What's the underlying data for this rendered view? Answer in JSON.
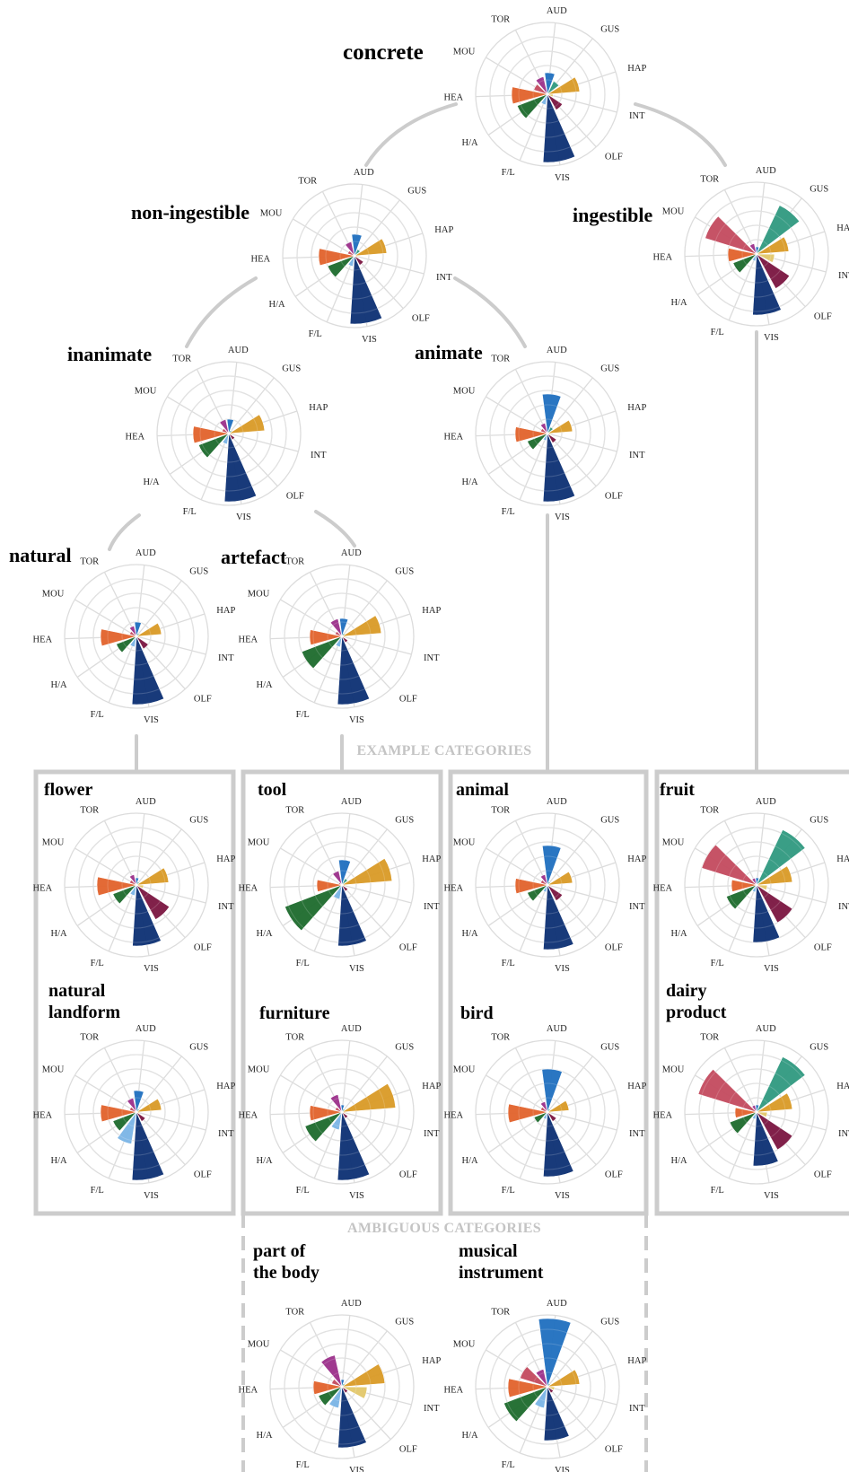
{
  "figure": {
    "example_heading": "EXAMPLE CATEGORIES",
    "ambiguous_heading": "AMBIGUOUS CATEGORIES"
  },
  "dimensions": [
    {
      "code": "AUD",
      "color": "#1f6fbf"
    },
    {
      "code": "GUS",
      "color": "#2f9980"
    },
    {
      "code": "HAP",
      "color": "#d99a26"
    },
    {
      "code": "INT",
      "color": "#e3c76a"
    },
    {
      "code": "OLF",
      "color": "#7a1540"
    },
    {
      "code": "VIS",
      "color": "#0c2f73"
    },
    {
      "code": "F/L",
      "color": "#7ab4e6"
    },
    {
      "code": "H/A",
      "color": "#1c6a2c"
    },
    {
      "code": "HEA",
      "color": "#e2622b"
    },
    {
      "code": "MOU",
      "color": "#c34a5e"
    },
    {
      "code": "TOR",
      "color": "#9b2f8a"
    }
  ],
  "chart_data": [
    {
      "type": "polar-bar",
      "title": [
        "concrete"
      ],
      "values": [
        0.3,
        0.2,
        0.45,
        0.08,
        0.25,
        0.95,
        0.15,
        0.45,
        0.5,
        0.2,
        0.25
      ]
    },
    {
      "type": "polar-bar",
      "title": [
        "non-ingestible"
      ],
      "values": [
        0.3,
        0.1,
        0.45,
        0.05,
        0.15,
        0.95,
        0.15,
        0.4,
        0.5,
        0.1,
        0.2
      ]
    },
    {
      "type": "polar-bar",
      "title": [
        "ingestible"
      ],
      "values": [
        0.1,
        0.75,
        0.45,
        0.25,
        0.55,
        0.85,
        0.1,
        0.35,
        0.4,
        0.75,
        0.15
      ]
    },
    {
      "type": "polar-bar",
      "title": [
        "inanimate"
      ],
      "values": [
        0.2,
        0.05,
        0.5,
        0.05,
        0.1,
        0.95,
        0.15,
        0.45,
        0.5,
        0.1,
        0.2
      ]
    },
    {
      "type": "polar-bar",
      "title": [
        "animate"
      ],
      "values": [
        0.55,
        0.1,
        0.35,
        0.05,
        0.15,
        0.95,
        0.1,
        0.3,
        0.45,
        0.1,
        0.15
      ]
    },
    {
      "type": "polar-bar",
      "title": [
        "natural"
      ],
      "values": [
        0.2,
        0.05,
        0.35,
        0.05,
        0.2,
        0.95,
        0.15,
        0.3,
        0.5,
        0.1,
        0.15
      ]
    },
    {
      "type": "polar-bar",
      "title": [
        "artefact"
      ],
      "values": [
        0.25,
        0.05,
        0.55,
        0.05,
        0.1,
        0.95,
        0.15,
        0.6,
        0.45,
        0.1,
        0.25
      ]
    },
    {
      "type": "polar-bar",
      "title": [
        "flower"
      ],
      "values": [
        0.1,
        0.05,
        0.45,
        0.1,
        0.55,
        0.85,
        0.15,
        0.35,
        0.55,
        0.1,
        0.15
      ]
    },
    {
      "type": "polar-bar",
      "title": [
        "tool"
      ],
      "values": [
        0.35,
        0.1,
        0.7,
        0.05,
        0.1,
        0.85,
        0.2,
        0.85,
        0.35,
        0.05,
        0.2
      ]
    },
    {
      "type": "polar-bar",
      "title": [
        "animal"
      ],
      "values": [
        0.55,
        0.05,
        0.35,
        0.05,
        0.25,
        0.9,
        0.1,
        0.3,
        0.45,
        0.1,
        0.15
      ]
    },
    {
      "type": "polar-bar",
      "title": [
        "fruit"
      ],
      "values": [
        0.1,
        0.85,
        0.5,
        0.15,
        0.6,
        0.8,
        0.1,
        0.45,
        0.35,
        0.8,
        0.1
      ]
    },
    {
      "type": "polar-bar",
      "title": [
        "natural",
        "landform"
      ],
      "values": [
        0.3,
        0.05,
        0.35,
        0.05,
        0.15,
        0.95,
        0.45,
        0.35,
        0.5,
        0.1,
        0.2
      ]
    },
    {
      "type": "polar-bar",
      "title": [
        "furniture"
      ],
      "values": [
        0.1,
        0.05,
        0.75,
        0.05,
        0.1,
        0.95,
        0.25,
        0.55,
        0.45,
        0.1,
        0.25
      ]
    },
    {
      "type": "polar-bar",
      "title": [
        "bird"
      ],
      "values": [
        0.6,
        0.05,
        0.3,
        0.05,
        0.15,
        0.9,
        0.1,
        0.2,
        0.55,
        0.1,
        0.15
      ]
    },
    {
      "type": "polar-bar",
      "title": [
        "dairy",
        "product"
      ],
      "values": [
        0.1,
        0.85,
        0.5,
        0.15,
        0.6,
        0.75,
        0.1,
        0.4,
        0.3,
        0.85,
        0.1
      ]
    },
    {
      "type": "polar-bar",
      "title": [
        "part of",
        "the body"
      ],
      "values": [
        0.1,
        0.05,
        0.6,
        0.35,
        0.1,
        0.85,
        0.3,
        0.35,
        0.4,
        0.15,
        0.45
      ]
    },
    {
      "type": "polar-bar",
      "title": [
        "musical",
        "instrument"
      ],
      "values": [
        0.95,
        0.05,
        0.45,
        0.1,
        0.1,
        0.75,
        0.3,
        0.65,
        0.55,
        0.4,
        0.25
      ]
    }
  ]
}
